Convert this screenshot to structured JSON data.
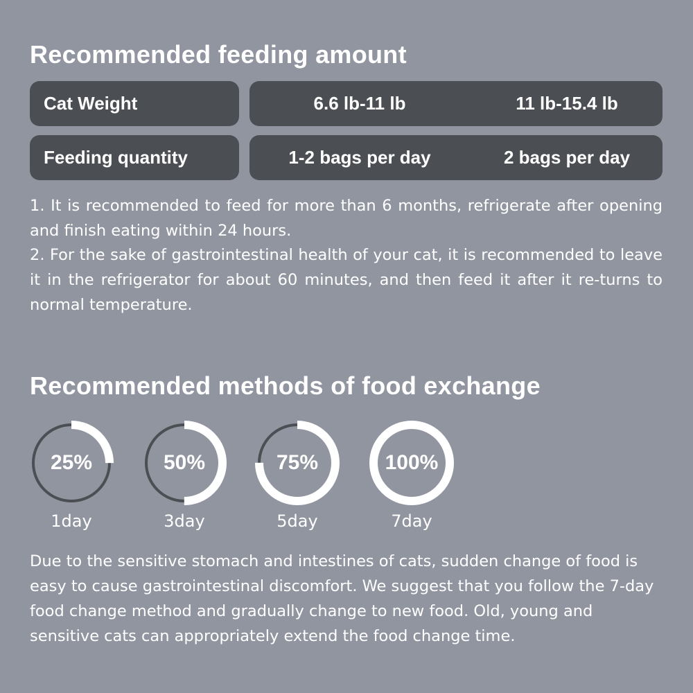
{
  "feeding": {
    "title": "Recommended feeding amount",
    "rows": [
      {
        "label": "Cat Weight",
        "values": [
          "6.6 lb-11 lb",
          "11 lb-15.4 lb"
        ]
      },
      {
        "label": "Feeding quantity",
        "values": [
          "1-2 bags per day",
          "2 bags per day"
        ]
      }
    ],
    "notes": [
      "1. It is recommended to feed for more than 6 months, refrigerate after opening and finish eating within 24 hours.",
      "2. For the sake of gastrointestinal health of your cat, it is recommended to leave it in the refrigerator for about 60 minutes, and then feed it after it re-turns to normal temperature."
    ]
  },
  "exchange": {
    "title": "Recommended methods of food exchange",
    "steps": [
      {
        "percent_label": "25%",
        "fraction": 0.25,
        "day": "1day"
      },
      {
        "percent_label": "50%",
        "fraction": 0.5,
        "day": "3day"
      },
      {
        "percent_label": "75%",
        "fraction": 0.75,
        "day": "5day"
      },
      {
        "percent_label": "100%",
        "fraction": 1.0,
        "day": "7day"
      }
    ],
    "description": "Due to the sensitive stomach and intestines of cats, sudden change of food is easy to cause gastrointestinal discomfort. We suggest that you follow the 7-day food change method and gradually change to new food. Old, young and sensitive cats can appropriately extend the food change time."
  },
  "colors": {
    "background": "#9195a0",
    "cell": "#4b4e53",
    "ring_filled": "#ffffff",
    "ring_track": "#4b4e53"
  }
}
